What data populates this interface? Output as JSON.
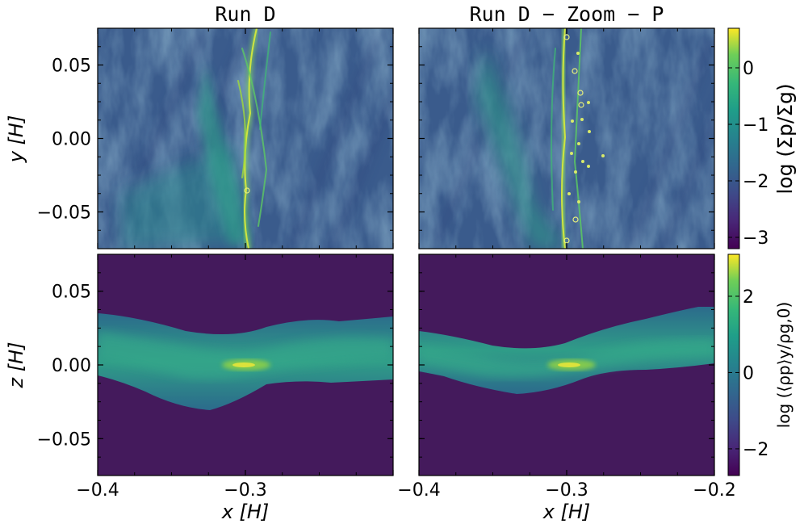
{
  "chart_data": [
    {
      "type": "heatmap",
      "panel": "top-left",
      "title": "Run D",
      "ylabel": "y [H]",
      "xlim": [
        -0.4,
        -0.2
      ],
      "ylim": [
        -0.075,
        0.075
      ],
      "ytick_values": [
        0.05,
        0.0,
        -0.05
      ],
      "ytick_labels": [
        "0.05",
        "0.00",
        "−0.05"
      ],
      "colorbar": "top"
    },
    {
      "type": "heatmap",
      "panel": "top-right",
      "title": "Run D − Zoom − P",
      "xlim": [
        -0.4,
        -0.2
      ],
      "ylim": [
        -0.075,
        0.075
      ],
      "colorbar": "top"
    },
    {
      "type": "heatmap",
      "panel": "bottom-left",
      "xlabel": "x [H]",
      "ylabel": "z [H]",
      "xlim": [
        -0.4,
        -0.2
      ],
      "ylim": [
        -0.075,
        0.075
      ],
      "xtick_values": [
        -0.4,
        -0.3
      ],
      "xtick_labels": [
        "−0.4",
        "−0.3"
      ],
      "ytick_values": [
        0.05,
        0.0,
        -0.05
      ],
      "ytick_labels": [
        "0.05",
        "0.00",
        "−0.05"
      ],
      "colorbar": "bottom"
    },
    {
      "type": "heatmap",
      "panel": "bottom-right",
      "xlabel": "x [H]",
      "xlim": [
        -0.4,
        -0.2
      ],
      "ylim": [
        -0.075,
        0.075
      ],
      "xtick_values": [
        -0.4,
        -0.3,
        -0.2
      ],
      "xtick_labels": [
        "−0.4",
        "−0.3",
        "−0.2"
      ],
      "colorbar": "bottom"
    }
  ],
  "colorbars": {
    "top": {
      "label": "log (Σp/Σg)",
      "range": [
        -3.2,
        0.7
      ],
      "tick_values": [
        0,
        -1,
        -2,
        -3
      ],
      "tick_labels": [
        "0",
        "−1",
        "−2",
        "−3"
      ],
      "colormap": "viridis"
    },
    "bottom": {
      "label": "log (⟨ρp⟩y/ρg,0)",
      "range": [
        -2.7,
        3.1
      ],
      "tick_values": [
        2,
        0,
        -2
      ],
      "tick_labels": [
        "2",
        "0",
        "−2"
      ],
      "colormap": "viridis"
    }
  },
  "colors": {
    "background_dark": "#3b2a6b",
    "mid": "#2b8a8b",
    "bright": "#c8e24a",
    "yellow": "#fde725"
  }
}
